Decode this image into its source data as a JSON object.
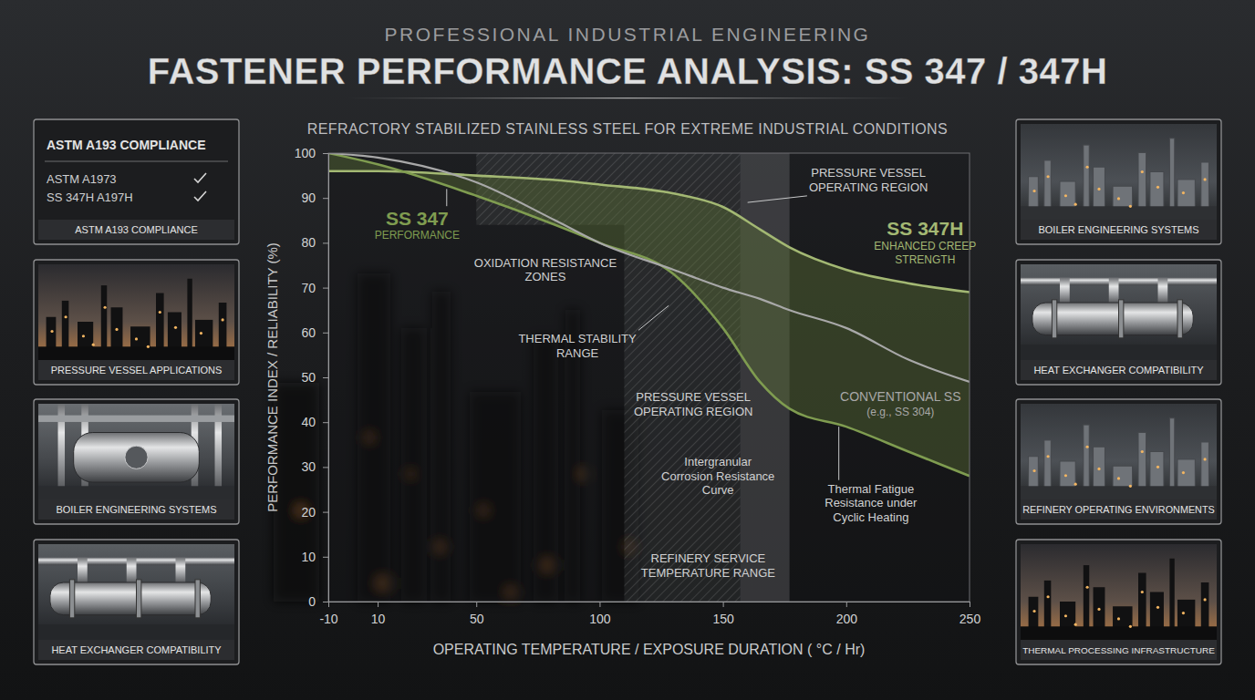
{
  "header": {
    "overline": "PROFESSIONAL INDUSTRIAL ENGINEERING"
  },
  "compliance": {
    "heading": "ASTM A193 COMPLIANCE",
    "items": [
      "ASTM A1973",
      "SS 347H A197H"
    ],
    "caption": "ASTM A193 COMPLIANCE"
  },
  "side_panels": {
    "left": [
      "PRESSURE VESSEL APPLICATIONS",
      "BOILER ENGINEERING SYSTEMS",
      "HEAT EXCHANGER COMPATIBILITY"
    ],
    "right": [
      "BOILER ENGINEERING SYSTEMS",
      "HEAT EXCHANGER COMPATIBILITY",
      "REFINERY OPERATING ENVIRONMENTS",
      "THERMAL PROCESSING INFRASTRUCTURE"
    ]
  },
  "chart_data": {
    "type": "line",
    "title": "FASTENER PERFORMANCE ANALYSIS: SS 347 / 347H",
    "subtitle": "REFRACTORY STABILIZED STAINLESS STEEL FOR EXTREME INDUSTRIAL CONDITIONS",
    "x_label": "OPERATING TEMPERATURE / EXPOSURE DURATION ( °C / Hr)",
    "y_label": "PERFORMANCE INDEX / RELIABILITY (%)",
    "x": [
      -10,
      10,
      50,
      82,
      100,
      130,
      150,
      165,
      177,
      200,
      225,
      250
    ],
    "series": [
      {
        "name": "SS 347H",
        "color": "#a3b873",
        "values": [
          96,
          96,
          95,
          94,
          93,
          91,
          88,
          83,
          79,
          74,
          71,
          69
        ]
      },
      {
        "name": "SS 347",
        "color": "#7f9c50",
        "values": [
          100,
          97.5,
          90.5,
          84,
          80,
          73,
          61,
          49,
          43,
          39,
          33.5,
          28
        ]
      },
      {
        "name": "CONVENTIONAL SS",
        "color": "#a8a8a8",
        "values": [
          100,
          99,
          93.5,
          85,
          80,
          74,
          70,
          67.5,
          65,
          61,
          54,
          49
        ]
      }
    ],
    "xlim": [
      -10,
      250
    ],
    "xticks": [
      -10,
      10,
      50,
      100,
      150,
      200,
      250
    ],
    "ylim": [
      0,
      100
    ],
    "yticks": [
      0,
      10,
      20,
      30,
      40,
      50,
      60,
      70,
      80,
      90,
      100
    ],
    "grid": false,
    "regions": [
      {
        "x": [
          50,
          110
        ],
        "y": [
          84,
          100
        ],
        "fill": "hatch"
      },
      {
        "x": [
          110,
          157
        ],
        "y": [
          0,
          100
        ],
        "fill": "hatch"
      },
      {
        "x": [
          157,
          177
        ],
        "y": [
          0,
          100
        ],
        "fill": "solid"
      }
    ],
    "annotations": [
      {
        "series": 1,
        "x": 26,
        "y": 85.4,
        "xy": [
          38,
          92
        ]
      },
      {
        "series": 1,
        "text": "PERFORMANCE",
        "x": 26,
        "y": 81.8
      },
      {
        "text": "OXIDATION RESISTANCE ZONES",
        "x": 78,
        "y": 74
      },
      {
        "text": "THERMAL STABILITY RANGE",
        "x": 91,
        "y": 57,
        "xy": [
          128,
          66
        ]
      },
      {
        "text": "PRESSURE VESSEL OPERATING REGION",
        "x": 209,
        "y": 94,
        "xy": [
          160,
          89
        ]
      },
      {
        "text": "PRESSURE VESSEL OPERATING REGION",
        "x": 138,
        "y": 44
      },
      {
        "series": 2,
        "x": 222,
        "y": 45.7
      },
      {
        "series": 2,
        "text": "(e.g., SS 304)",
        "x": 222,
        "y": 42.3
      },
      {
        "series": 0,
        "x": 232,
        "y": 83.3
      },
      {
        "series": 0,
        "text": "ENHANCED CREEP STRENGTH",
        "x": 232,
        "y": 77.8
      },
      {
        "text": "Intergranular Corrosion Resistance Curve",
        "x": 148,
        "y": 28
      },
      {
        "text": "Thermal Fatigue Resistance under Cyclic Heating",
        "x": 210,
        "y": 22,
        "xy": [
          197,
          39
        ]
      },
      {
        "text": "REFINERY SERVICE TEMPERATURE RANGE",
        "x": 144,
        "y": 8
      }
    ]
  }
}
